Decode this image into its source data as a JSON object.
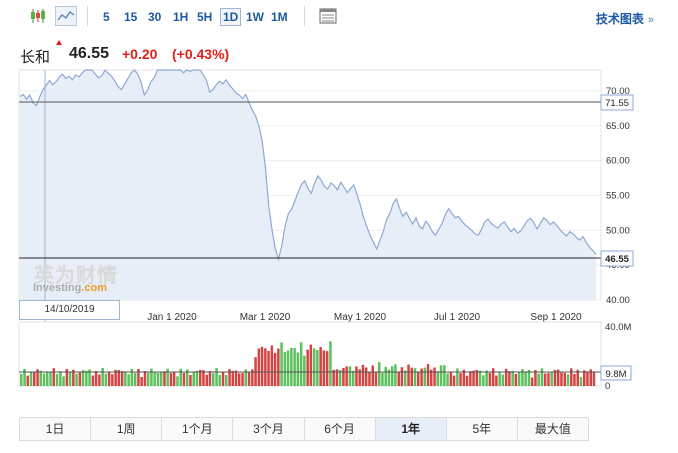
{
  "toolbar": {
    "intervals": [
      "5",
      "15",
      "30",
      "1H",
      "5H",
      "1D",
      "1W",
      "1M"
    ],
    "active_interval": "1D",
    "tech_chart_label": "技术图表",
    "more_arrow": "»"
  },
  "quote": {
    "name": "长和",
    "price": "46.55",
    "change": "+0.20",
    "change_pct": "(+0.43%)",
    "up_color": "#e0201b"
  },
  "watermark": {
    "cn": "英为财情",
    "en_prefix": "Investing",
    "en_suffix": ".com"
  },
  "cursor_date": "14/10/2019",
  "range_tabs": [
    "1日",
    "1周",
    "1个月",
    "3个月",
    "6个月",
    "1年",
    "5年",
    "最大值"
  ],
  "active_range": "1年",
  "chart_data": {
    "type": "area",
    "x_tick_labels": [
      "Jan 1 2020",
      "Mar 1 2020",
      "May 1 2020",
      "Jul 1 2020",
      "Sep 1 2020"
    ],
    "y_tick_labels": [
      "70.00",
      "65.00",
      "60.00",
      "55.00",
      "50.00",
      "45.00",
      "40.00"
    ],
    "ylim": [
      40,
      73
    ],
    "cursor_line_value": "71.55",
    "last_price_label": "46.55",
    "prices": [
      69.2,
      69.5,
      68.8,
      69.4,
      68.3,
      67.9,
      69.1,
      70.2,
      70.8,
      71.5,
      70.9,
      71.3,
      72.0,
      72.4,
      71.8,
      72.1,
      71.6,
      72.3,
      72.0,
      72.6,
      73.4,
      73.8,
      73.1,
      72.4,
      71.9,
      72.2,
      73.0,
      72.5,
      72.1,
      71.4,
      70.6,
      70.2,
      71.0,
      71.8,
      72.6,
      73.1,
      72.4,
      71.2,
      69.4,
      70.1,
      71.3,
      71.9,
      73.6,
      74.2,
      73.9,
      74.1,
      73.5,
      73.0,
      73.8,
      74.0,
      72.6,
      73.2,
      72.8,
      73.7,
      73.9,
      73.2,
      72.3,
      71.5,
      69.8,
      70.2,
      70.9,
      71.4,
      71.0,
      71.6,
      70.8,
      70.3,
      69.7,
      69.4,
      68.9,
      69.5,
      68.3,
      67.2,
      66.4,
      65.0,
      62.8,
      58.9,
      53.5,
      50.1,
      47.3,
      45.9,
      47.8,
      50.6,
      52.4,
      53.0,
      54.2,
      55.5,
      56.6,
      57.1,
      56.0,
      55.3,
      56.7,
      57.8,
      57.2,
      56.3,
      55.9,
      56.8,
      56.4,
      55.8,
      56.9,
      56.2,
      55.4,
      56.0,
      56.5,
      55.1,
      53.6,
      51.8,
      50.5,
      49.2,
      48.3,
      47.3,
      48.6,
      49.8,
      51.5,
      52.4,
      53.8,
      54.5,
      53.1,
      52.0,
      52.6,
      51.7,
      50.9,
      51.8,
      50.6,
      50.2,
      51.3,
      50.7,
      49.8,
      49.3,
      50.2,
      51.0,
      52.3,
      53.1,
      52.4,
      51.8,
      52.0,
      51.3,
      50.8,
      50.4,
      50.0,
      49.5,
      49.3,
      50.1,
      51.2,
      51.6,
      51.0,
      50.6,
      50.3,
      50.9,
      51.2,
      50.5,
      49.8,
      50.3,
      49.6,
      49.9,
      50.6,
      51.4,
      51.7,
      51.1,
      50.2,
      51.0,
      51.8,
      51.4,
      50.8,
      51.2,
      50.7,
      50.1,
      49.6,
      49.2,
      49.8,
      49.5,
      49.0,
      48.6,
      49.1,
      48.3,
      47.6,
      47.1,
      46.55
    ],
    "volume_ylim": [
      0,
      40
    ],
    "volume_unit": "M",
    "volume_tick_labels": [
      "40.0M",
      "0"
    ],
    "volume_cursor_label": "9.8M",
    "volume_colors": {
      "up": "#5cc05c",
      "down": "#d44444"
    }
  }
}
